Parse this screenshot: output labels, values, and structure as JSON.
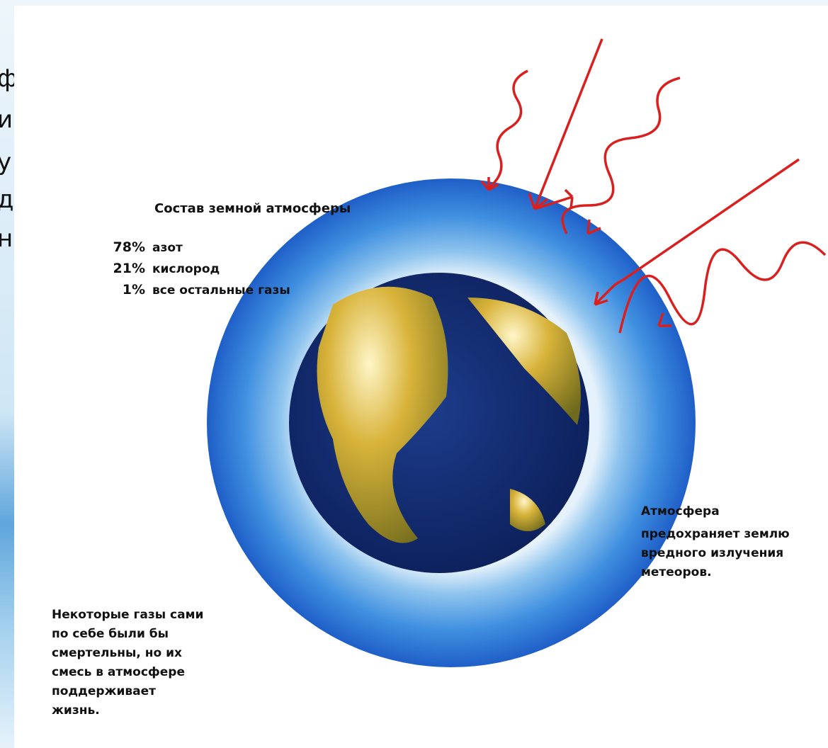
{
  "slide_fragments": [
    "ф",
    "и",
    "у",
    "д",
    "н"
  ],
  "composition": {
    "title": "Состав земной атмосферы",
    "items": [
      {
        "share": "78%",
        "gas": "азот"
      },
      {
        "share": "21%",
        "gas": "кислород"
      },
      {
        "share": "1%",
        "gas": "все остальные газы"
      }
    ]
  },
  "protection_note": [
    "Атмосфера",
    "предохраняет землю",
    "вредного излучения",
    "метеоров."
  ],
  "gases_note": [
    "Некоторые газы сами",
    "по себе были бы",
    "смертельны, но их",
    "смесь в атмосфере",
    "поддерживает",
    "жизнь."
  ]
}
